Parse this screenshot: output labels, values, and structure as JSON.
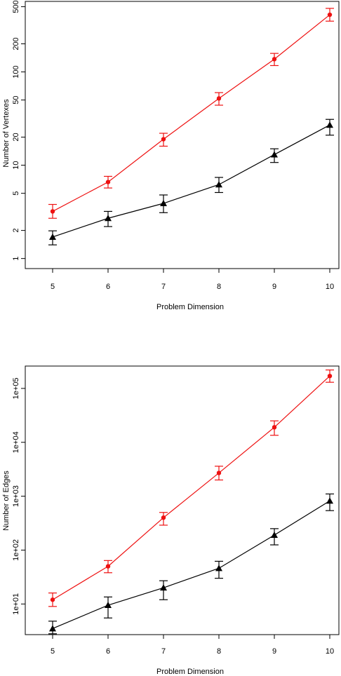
{
  "chart_data": [
    {
      "type": "line",
      "xlabel": "Problem Dimension",
      "ylabel": "Number of Vertexes",
      "y_scale": "log",
      "x": [
        5,
        6,
        7,
        8,
        9,
        10
      ],
      "x_ticks": [
        "5",
        "6",
        "7",
        "8",
        "9",
        "10"
      ],
      "y_ticks": [
        {
          "value": 1,
          "label": "1"
        },
        {
          "value": 2,
          "label": "2"
        },
        {
          "value": 5,
          "label": "5"
        },
        {
          "value": 10,
          "label": "10"
        },
        {
          "value": 20,
          "label": "20"
        },
        {
          "value": 50,
          "label": "50"
        },
        {
          "value": 100,
          "label": "100"
        },
        {
          "value": 200,
          "label": "200"
        },
        {
          "value": 500,
          "label": "500"
        }
      ],
      "ylim": [
        0.78,
        570
      ],
      "grid": false,
      "series": [
        {
          "color": "#ee1111",
          "marker": "circle",
          "values": [
            3.2,
            6.6,
            19,
            52,
            137,
            410
          ],
          "err_low": [
            2.7,
            5.7,
            16,
            44,
            117,
            350
          ],
          "err_high": [
            3.8,
            7.6,
            22,
            60,
            158,
            480
          ]
        },
        {
          "color": "#000000",
          "marker": "triangle",
          "values": [
            1.7,
            2.7,
            3.9,
            6.2,
            13,
            27
          ],
          "err_low": [
            1.4,
            2.2,
            3.1,
            5.1,
            10.7,
            21
          ],
          "err_high": [
            1.98,
            3.2,
            4.8,
            7.4,
            15,
            31
          ]
        }
      ]
    },
    {
      "type": "line",
      "xlabel": "Problem Dimension",
      "ylabel": "Number of Edges",
      "y_scale": "log",
      "x": [
        5,
        6,
        7,
        8,
        9,
        10
      ],
      "x_ticks": [
        "5",
        "6",
        "7",
        "8",
        "9",
        "10"
      ],
      "y_ticks": [
        {
          "value": 10,
          "label": "1e+01"
        },
        {
          "value": 100,
          "label": "1e+02"
        },
        {
          "value": 1000,
          "label": "1e+03"
        },
        {
          "value": 10000,
          "label": "1e+04"
        },
        {
          "value": 100000,
          "label": "1e+05"
        }
      ],
      "ylim": [
        2.7,
        260000
      ],
      "grid": false,
      "series": [
        {
          "color": "#ee1111",
          "marker": "circle",
          "values": [
            12,
            50,
            400,
            2700,
            19000,
            170000
          ],
          "err_low": [
            9,
            38,
            290,
            2000,
            13500,
            130000
          ],
          "err_high": [
            16,
            64,
            500,
            3600,
            25000,
            220000
          ]
        },
        {
          "color": "#000000",
          "marker": "triangle",
          "values": [
            3.5,
            9.5,
            20,
            46,
            190,
            820
          ],
          "err_low": [
            2.8,
            5.5,
            12,
            30,
            125,
            540
          ],
          "err_high": [
            4.8,
            13.5,
            27,
            62,
            250,
            1100
          ]
        }
      ]
    }
  ]
}
